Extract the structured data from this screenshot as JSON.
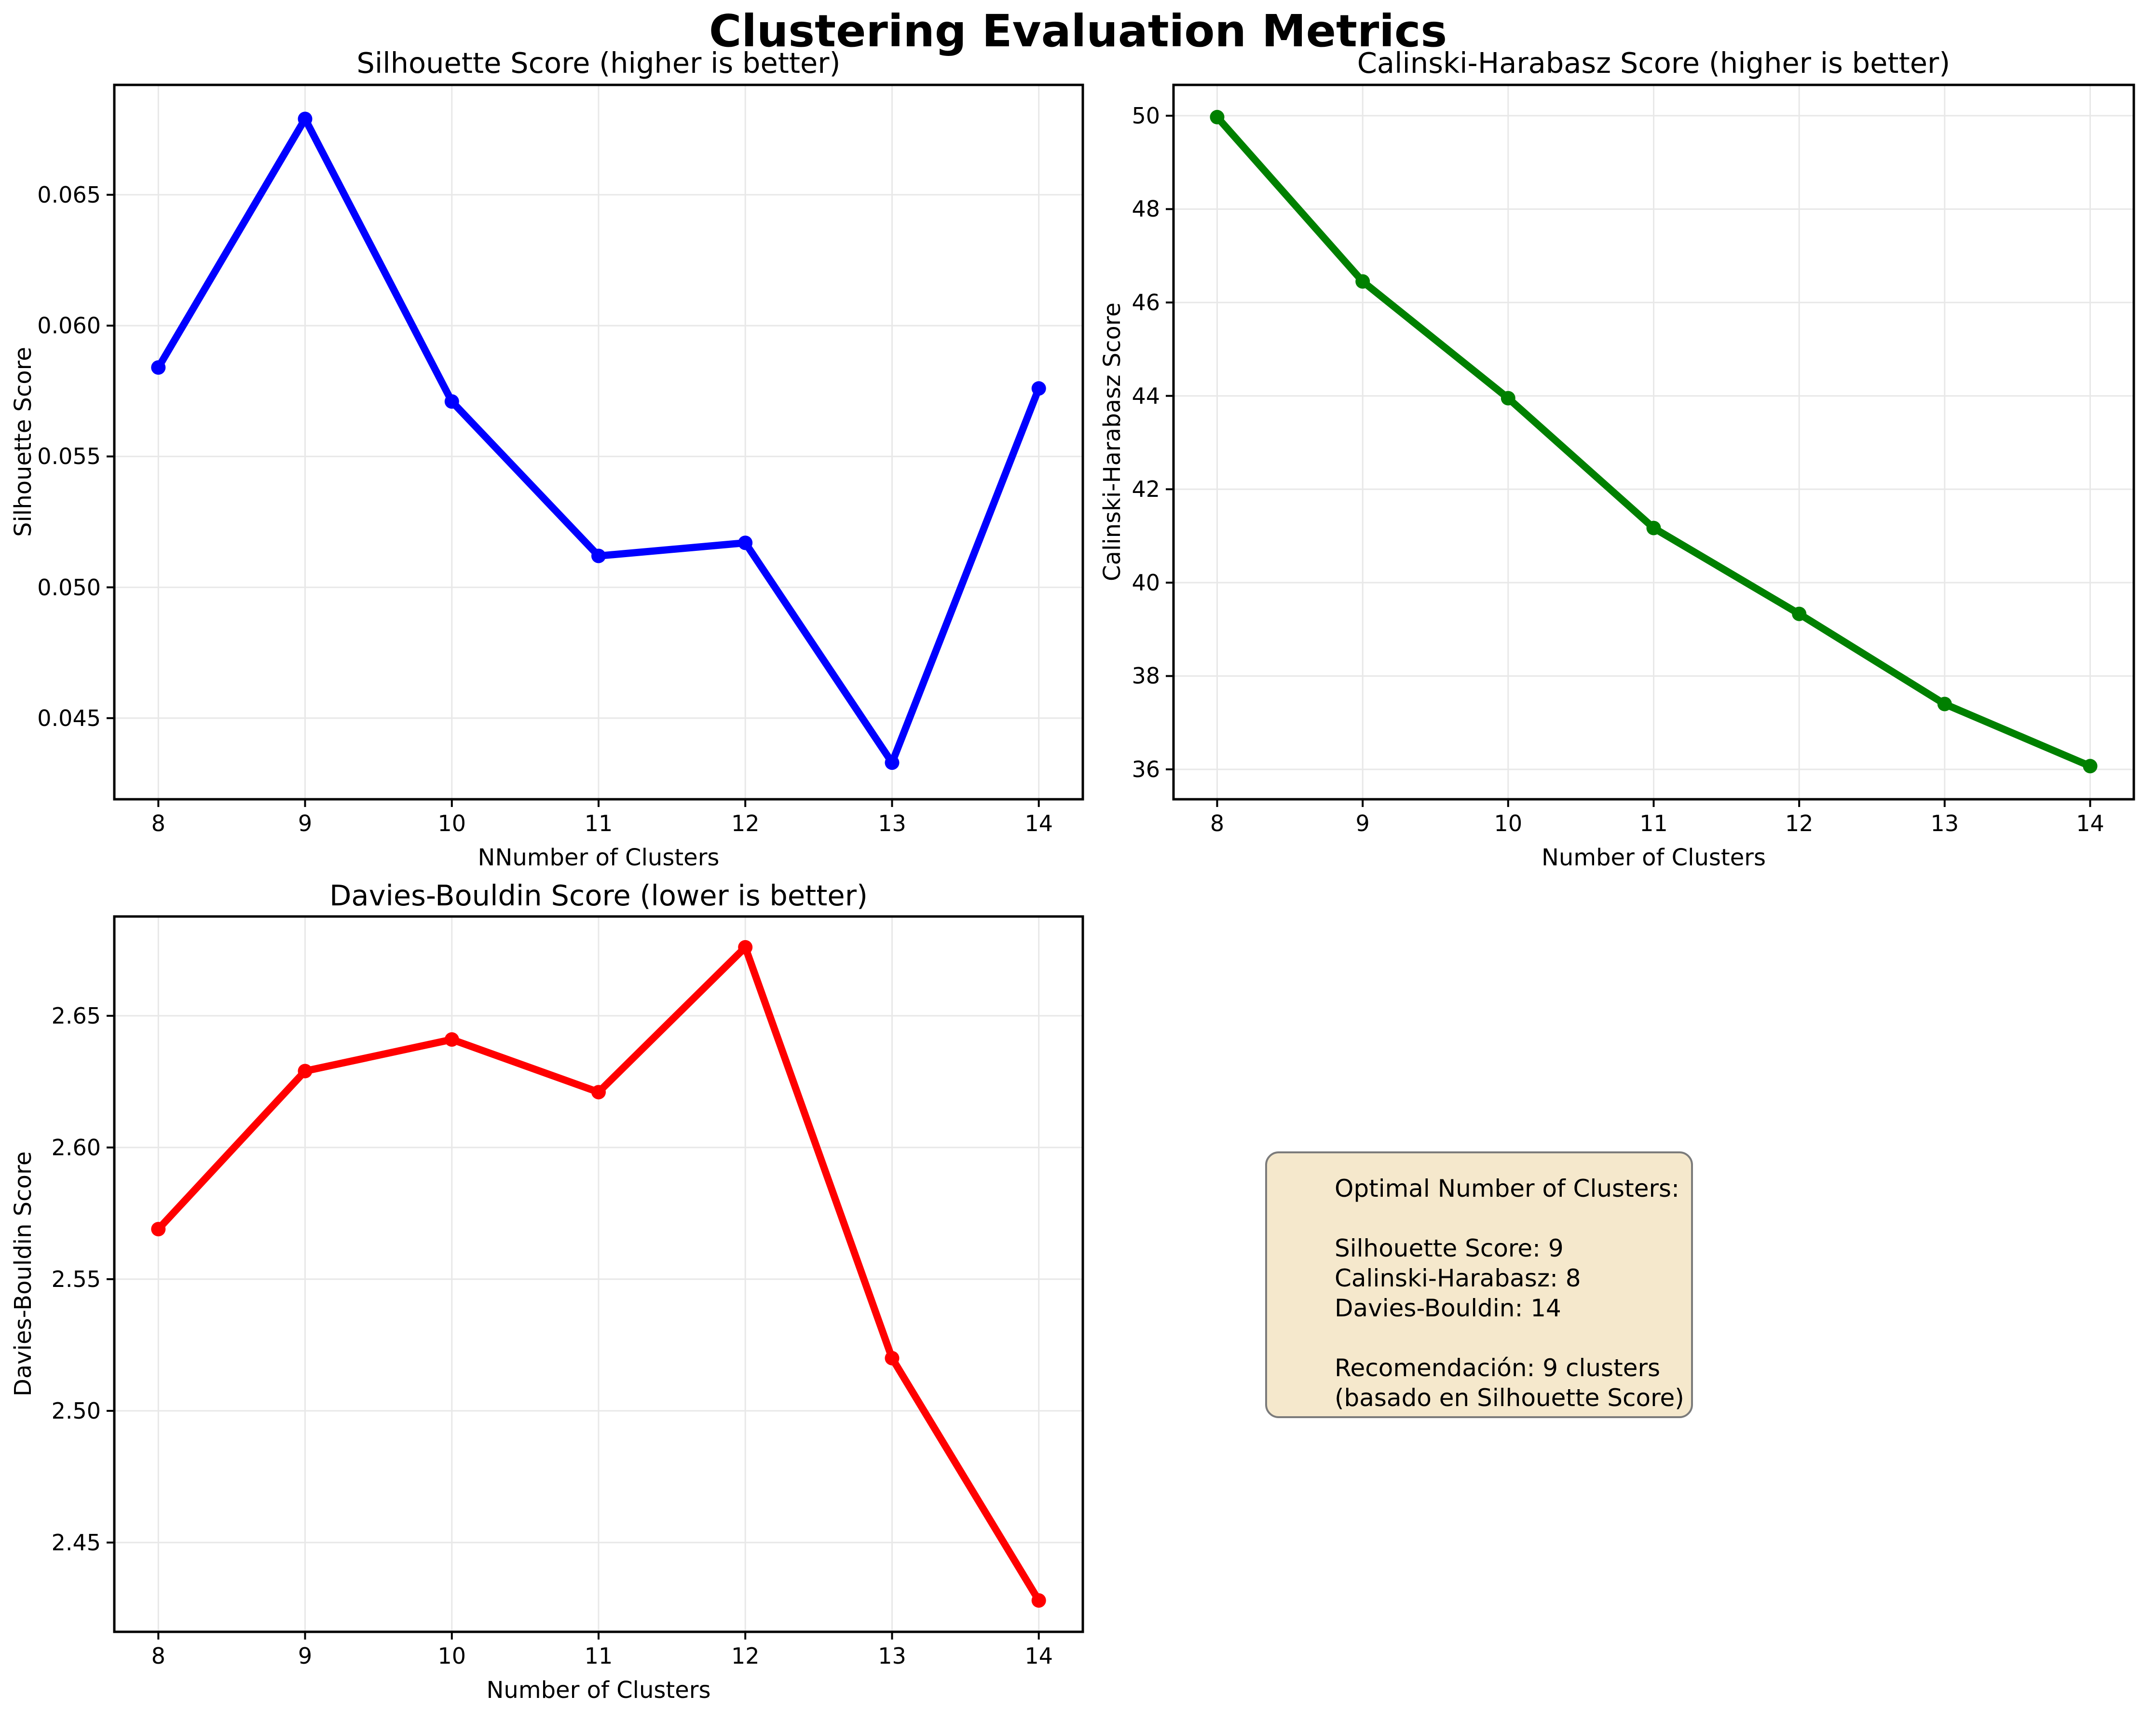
{
  "figure": {
    "suptitle": "Clustering Evaluation Metrics",
    "background": "#ffffff"
  },
  "info_box": {
    "fill_color": "#f5e8cc",
    "border_color": "#7b7b7b",
    "lines": [
      "Optimal Number of Clusters:",
      "",
      "Silhouette Score: 9",
      "Calinski-Harabasz: 8",
      "Davies-Bouldin: 14",
      "",
      "Recomendación: 9 clusters",
      "(basado en Silhouette Score)"
    ]
  },
  "chart_data": [
    {
      "type": "line",
      "title": "Silhouette Score (higher is better)",
      "xlabel": "NNumber of Clusters",
      "ylabel": "Silhouette Score",
      "color": "#0000ff",
      "x": [
        8,
        9,
        10,
        11,
        12,
        13,
        14
      ],
      "y": [
        0.0584,
        0.0679,
        0.0571,
        0.0512,
        0.0517,
        0.0433,
        0.0576
      ],
      "xlim": [
        7.7,
        14.3
      ],
      "ylim": [
        0.0419,
        0.0692
      ],
      "xticks": [
        8,
        9,
        10,
        11,
        12,
        13,
        14
      ],
      "xtick_labels": [
        "8",
        "9",
        "10",
        "11",
        "12",
        "13",
        "14"
      ],
      "yticks": [
        0.045,
        0.05,
        0.055,
        0.06,
        0.065
      ],
      "ytick_labels": [
        "0.045",
        "0.050",
        "0.055",
        "0.060",
        "0.065"
      ],
      "grid": true,
      "legend": "none"
    },
    {
      "type": "line",
      "title": "Calinski-Harabasz Score (higher is better)",
      "xlabel": "Number of Clusters",
      "ylabel": "Calinski-Harabasz Score",
      "color": "#008000",
      "x": [
        8,
        9,
        10,
        11,
        12,
        13,
        14
      ],
      "y": [
        49.97,
        46.45,
        43.95,
        41.17,
        39.33,
        37.4,
        36.07
      ],
      "xlim": [
        7.7,
        14.3
      ],
      "ylim": [
        35.36,
        50.66
      ],
      "xticks": [
        8,
        9,
        10,
        11,
        12,
        13,
        14
      ],
      "xtick_labels": [
        "8",
        "9",
        "10",
        "11",
        "12",
        "13",
        "14"
      ],
      "yticks": [
        36,
        38,
        40,
        42,
        44,
        46,
        48,
        50
      ],
      "ytick_labels": [
        "36",
        "38",
        "40",
        "42",
        "44",
        "46",
        "48",
        "50"
      ],
      "grid": true,
      "legend": "none"
    },
    {
      "type": "line",
      "title": "Davies-Bouldin Score (lower is better)",
      "xlabel": "Number of Clusters",
      "ylabel": "Davies-Bouldin Score",
      "color": "#ff0000",
      "x": [
        8,
        9,
        10,
        11,
        12,
        13,
        14
      ],
      "y": [
        2.569,
        2.629,
        2.641,
        2.621,
        2.676,
        2.52,
        2.428
      ],
      "xlim": [
        7.7,
        14.3
      ],
      "ylim": [
        2.4161,
        2.6877
      ],
      "xticks": [
        8,
        9,
        10,
        11,
        12,
        13,
        14
      ],
      "xtick_labels": [
        "8",
        "9",
        "10",
        "11",
        "12",
        "13",
        "14"
      ],
      "yticks": [
        2.45,
        2.5,
        2.55,
        2.6,
        2.65
      ],
      "ytick_labels": [
        "2.45",
        "2.50",
        "2.55",
        "2.60",
        "2.65"
      ],
      "grid": true,
      "legend": "none"
    }
  ]
}
